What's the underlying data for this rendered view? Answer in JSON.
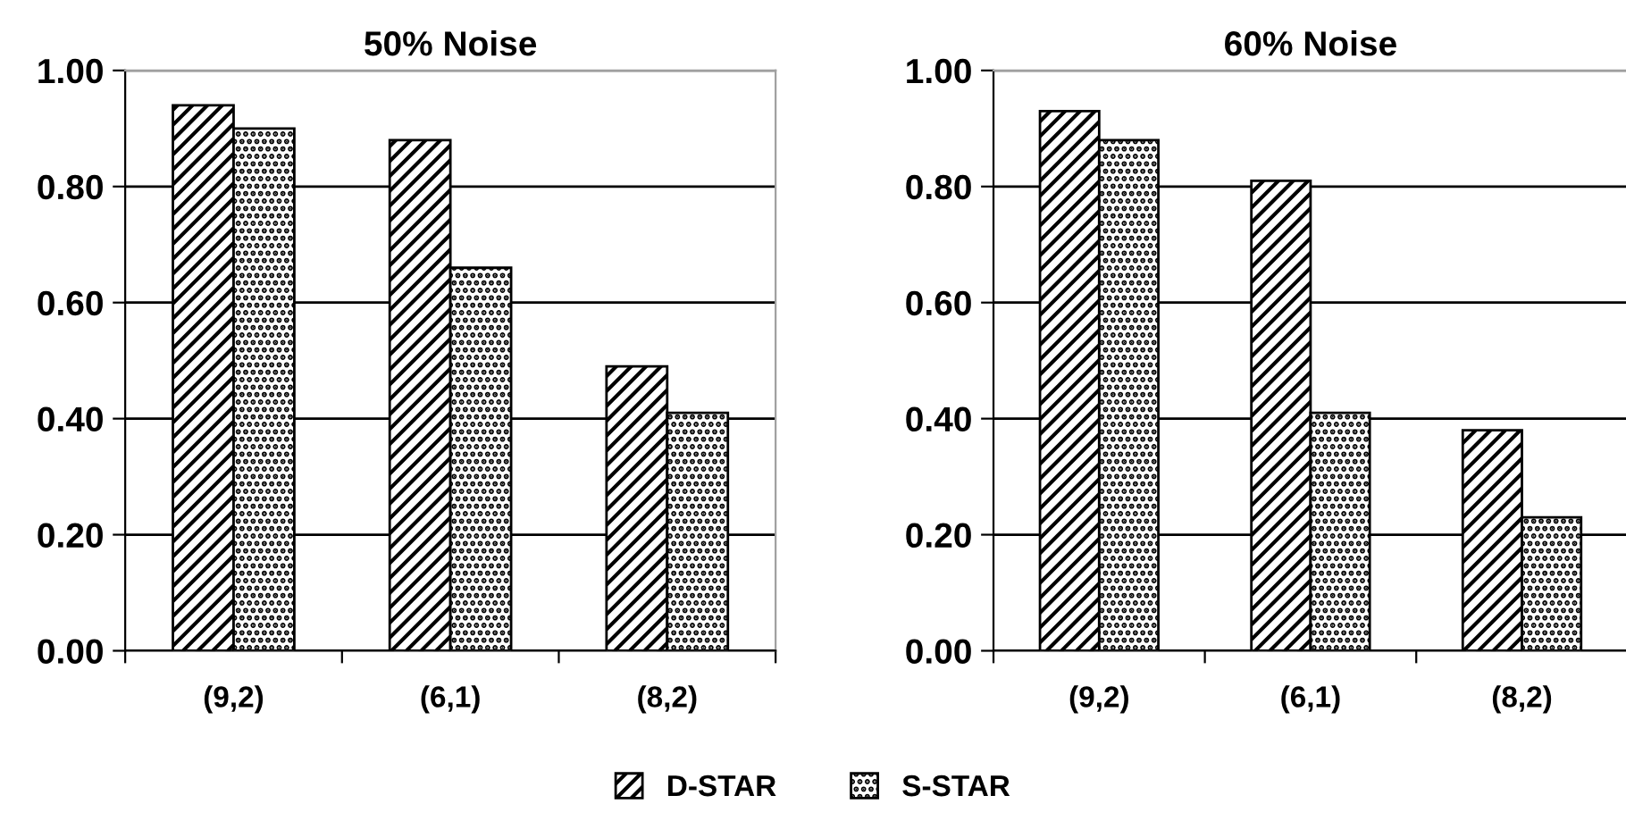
{
  "chart_data": [
    {
      "type": "bar",
      "title": "50% Noise",
      "categories": [
        "(9,2)",
        "(6,1)",
        "(8,2)"
      ],
      "series": [
        {
          "name": "D-STAR",
          "color": "#000000",
          "values": [
            0.94,
            0.88,
            0.49
          ]
        },
        {
          "name": "S-STAR",
          "color": "#000000",
          "values": [
            0.9,
            0.66,
            0.41
          ]
        }
      ],
      "ylim": [
        0,
        1
      ],
      "yticks": [
        {
          "value": 0,
          "label": "0.00"
        },
        {
          "value": 0.2,
          "label": "0.20"
        },
        {
          "value": 0.4,
          "label": "0.40"
        },
        {
          "value": 0.6,
          "label": "0.60"
        },
        {
          "value": 0.8,
          "label": "0.80"
        },
        {
          "value": 1,
          "label": "1.00"
        }
      ],
      "grid": "y",
      "legend": "bottom"
    },
    {
      "type": "bar",
      "title": "60% Noise",
      "categories": [
        "(9,2)",
        "(6,1)",
        "(8,2)"
      ],
      "series": [
        {
          "name": "D-STAR",
          "color": "#000000",
          "values": [
            0.93,
            0.81,
            0.38
          ]
        },
        {
          "name": "S-STAR",
          "color": "#000000",
          "values": [
            0.88,
            0.41,
            0.23
          ]
        }
      ],
      "ylim": [
        0,
        1
      ],
      "yticks": [
        {
          "value": 0,
          "label": "0.00"
        },
        {
          "value": 0.2,
          "label": "0.20"
        },
        {
          "value": 0.4,
          "label": "0.40"
        },
        {
          "value": 0.6,
          "label": "0.60"
        },
        {
          "value": 0.8,
          "label": "0.80"
        },
        {
          "value": 1,
          "label": "1.00"
        }
      ],
      "grid": "y",
      "legend": "bottom"
    }
  ]
}
